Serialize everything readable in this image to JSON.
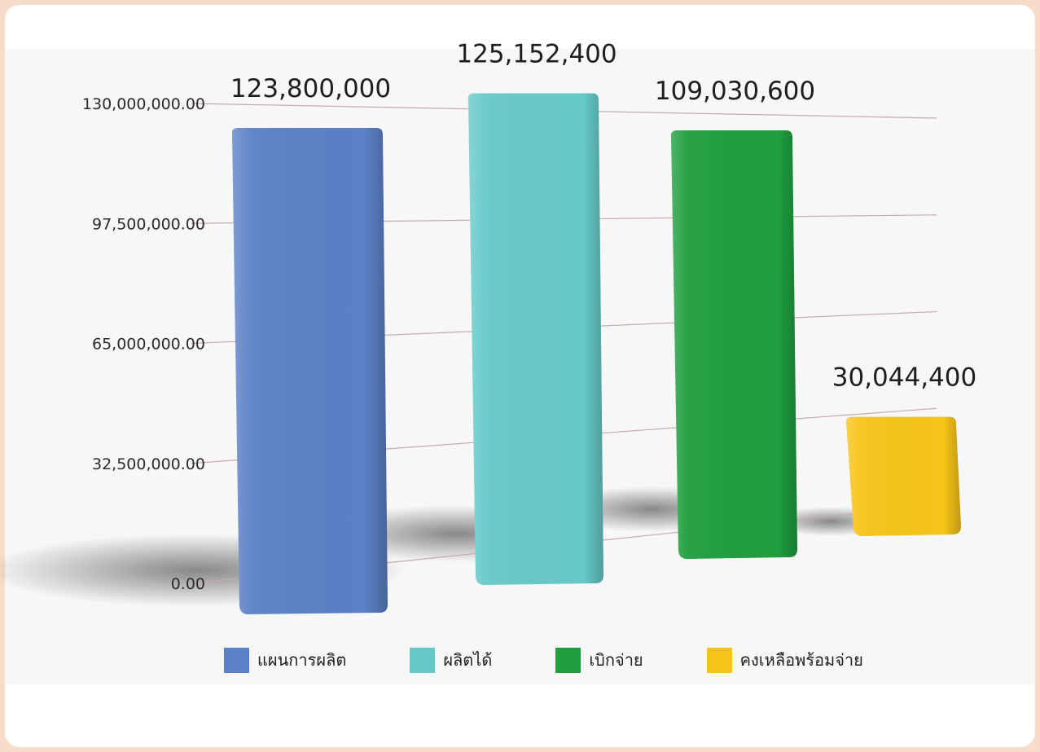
{
  "chart_data": {
    "type": "bar",
    "categories": [
      "แผนการผลิต",
      "ผลิตได้",
      "เบิกจ่าย",
      "คงเหลือพร้อมจ่าย"
    ],
    "values": [
      123800000,
      125152400,
      109030600,
      30044400
    ],
    "value_labels": [
      "123,800,000",
      "125,152,400",
      "109,030,600",
      "30,044,400"
    ],
    "colors": [
      "#5b80c6",
      "#66c9c8",
      "#1f9e3e",
      "#f6c419"
    ],
    "ylim": [
      0,
      130000000
    ],
    "yticks": [
      {
        "value": 0,
        "label": "0.00"
      },
      {
        "value": 32500000,
        "label": "32,500,000.00"
      },
      {
        "value": 65000000,
        "label": "65,000,000.00"
      },
      {
        "value": 97500000,
        "label": "97,500,000.00"
      },
      {
        "value": 130000000,
        "label": "130,000,000.00"
      }
    ],
    "grid": true,
    "legend_position": "bottom",
    "title": "",
    "xlabel": "",
    "ylabel": ""
  }
}
